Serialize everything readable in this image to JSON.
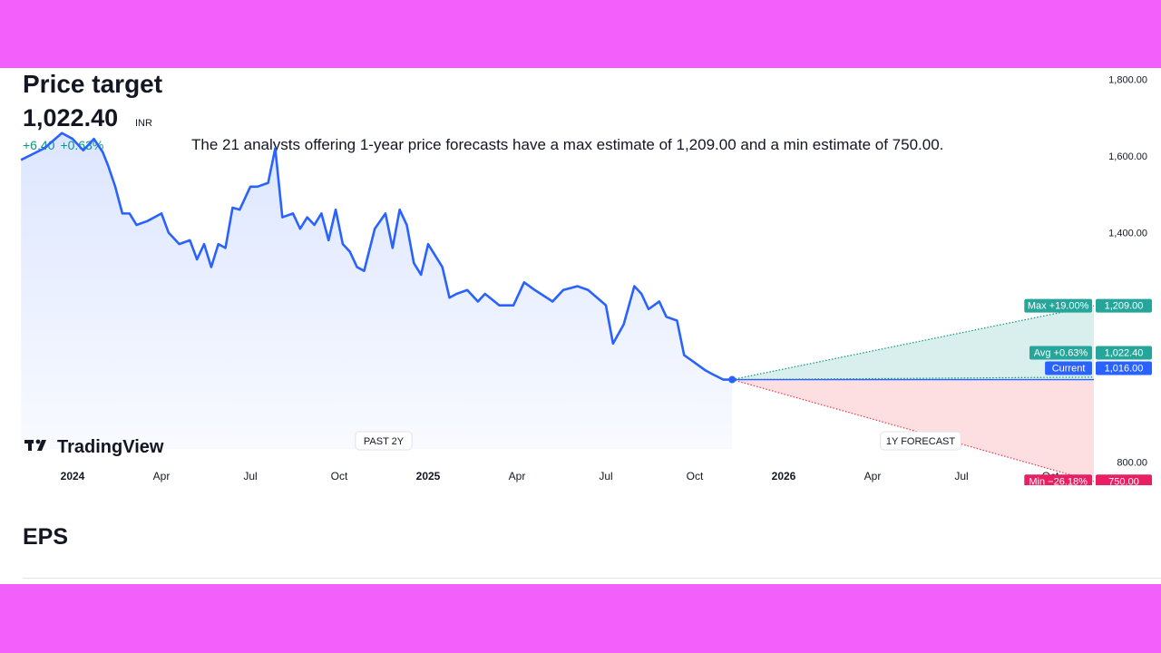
{
  "header": {
    "title": "Price target",
    "price": "1,022.40",
    "currency": "INR",
    "change_abs": "+6.40",
    "change_pct": "+0.63%",
    "summary": "The 21 analysts offering 1-year price forecasts have a max estimate of 1,209.00 and a min estimate of 750.00."
  },
  "colors": {
    "line": "#2962ff",
    "positive": "#089981",
    "negative": "#f23645",
    "max_label": "#26a69a",
    "min_label": "#e91e63",
    "current_label": "#2962ff",
    "background_bars": "#f25ffa"
  },
  "brand": {
    "logo_icon": "tradingview-logo-icon",
    "logo_text": "TradingView"
  },
  "chart_data": {
    "type": "line",
    "ylim": [
      740,
      1830
    ],
    "y_ticks": [
      "1,800.00",
      "1,600.00",
      "1,400.00",
      "800.00"
    ],
    "y_tick_values": [
      1800,
      1600,
      1400,
      800
    ],
    "x_tick_labels": [
      {
        "label": "2024",
        "t": 0.0,
        "bold": true
      },
      {
        "label": "Apr",
        "t": 0.25
      },
      {
        "label": "Jul",
        "t": 0.5
      },
      {
        "label": "Oct",
        "t": 0.75
      },
      {
        "label": "2025",
        "t": 1.0,
        "bold": true
      },
      {
        "label": "Apr",
        "t": 1.25
      },
      {
        "label": "Jul",
        "t": 1.5
      },
      {
        "label": "Oct",
        "t": 1.75
      },
      {
        "label": "2026",
        "t": 2.0,
        "bold": true
      },
      {
        "label": "Apr",
        "t": 2.25
      },
      {
        "label": "Jul",
        "t": 2.5
      },
      {
        "label": "Oct",
        "t": 2.75
      }
    ],
    "past_label": "PAST 2Y",
    "forecast_label": "1Y FORECAST",
    "series": [
      {
        "x": [
          -0.145,
          -0.08,
          -0.03,
          0.0,
          0.03,
          0.06,
          0.085,
          0.1,
          0.12,
          0.14,
          0.16,
          0.18,
          0.21,
          0.25,
          0.27,
          0.3,
          0.33,
          0.35,
          0.37,
          0.39,
          0.41,
          0.43,
          0.45,
          0.47,
          0.5,
          0.52,
          0.55,
          0.57,
          0.59,
          0.62,
          0.64,
          0.66,
          0.68,
          0.7,
          0.72,
          0.74,
          0.76,
          0.78,
          0.8,
          0.82,
          0.85,
          0.88,
          0.9,
          0.92,
          0.94,
          0.96,
          0.98,
          1.0,
          1.02,
          1.04,
          1.06,
          1.08,
          1.11,
          1.14,
          1.16,
          1.2,
          1.24,
          1.27,
          1.3,
          1.35,
          1.38,
          1.42,
          1.45,
          1.5,
          1.52,
          1.55,
          1.58,
          1.6,
          1.62,
          1.65,
          1.67,
          1.7,
          1.72,
          1.75,
          1.78,
          1.8,
          1.83,
          1.855
        ],
        "y": [
          1590,
          1620,
          1660,
          1645,
          1615,
          1645,
          1610,
          1575,
          1520,
          1450,
          1450,
          1420,
          1430,
          1450,
          1400,
          1370,
          1380,
          1330,
          1370,
          1310,
          1370,
          1360,
          1465,
          1460,
          1520,
          1520,
          1530,
          1620,
          1440,
          1450,
          1410,
          1440,
          1420,
          1450,
          1380,
          1460,
          1370,
          1350,
          1310,
          1300,
          1410,
          1450,
          1360,
          1460,
          1420,
          1320,
          1290,
          1370,
          1340,
          1310,
          1230,
          1240,
          1250,
          1220,
          1240,
          1210,
          1210,
          1270,
          1250,
          1220,
          1250,
          1260,
          1250,
          1210,
          1110,
          1160,
          1260,
          1240,
          1200,
          1220,
          1180,
          1170,
          1080,
          1060,
          1040,
          1030,
          1016,
          1016
        ]
      }
    ],
    "forecast": {
      "current": 1016.0,
      "max": 1209.0,
      "avg": 1022.4,
      "min": 750.0,
      "labels": {
        "max_tag": "Max +19.00%",
        "max_value": "1,209.00",
        "avg_tag": "Avg +0.63%",
        "avg_value": "1,022.40",
        "current_tag": "Current",
        "current_value": "1,016.00",
        "min_tag": "Min −26.18%",
        "min_value": "750.00"
      }
    }
  },
  "eps_section": {
    "title": "EPS"
  }
}
